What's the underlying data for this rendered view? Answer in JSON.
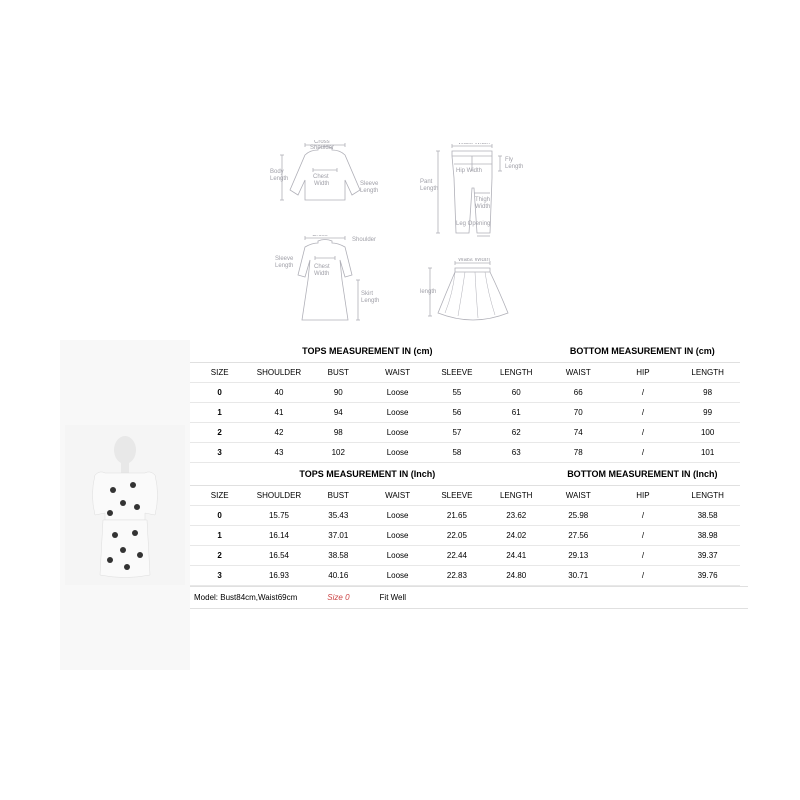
{
  "diagrams": {
    "top": {
      "cross_shoulder": "Cross\nShoulder",
      "body_length": "Body\nLength",
      "chest_width": "Chest\nWidth",
      "sleeve_length": "Sleeve\nLength"
    },
    "pants": {
      "waist_width": "Waist Width",
      "hip_width": "Hip Width",
      "pant_length": "Pant\nLength",
      "thigh_width": "Thigh\nWidth",
      "leg_opening": "Leg Opening",
      "fly_length": "Fly\nLength"
    },
    "dress": {
      "cross_shoulder": "Cross\nShoulder",
      "sleeve_length": "Sleeve\nLength",
      "chest_width": "Chest\nWidth",
      "skirt_length": "Skirt\nLength"
    },
    "skirt": {
      "waist_width": "Waist Width",
      "length": "length"
    }
  },
  "headers": {
    "tops_cm": "TOPS MEASUREMENT IN (cm)",
    "bottom_cm": "BOTTOM MEASUREMENT IN (cm)",
    "tops_inch": "TOPS MEASUREMENT IN (Inch)",
    "bottom_inch": "BOTTOM MEASUREMENT IN (Inch)"
  },
  "columns": {
    "size": "SIZE",
    "shoulder": "SHOULDER",
    "bust": "BUST",
    "waist": "WAIST",
    "sleeve": "SLEEVE",
    "length": "LENGTH",
    "hip": "HIP"
  },
  "cm_data": [
    {
      "size": "0",
      "shoulder": "40",
      "bust": "90",
      "waist": "Loose",
      "sleeve": "55",
      "length": "60",
      "b_waist": "66",
      "b_hip": "/",
      "b_length": "98"
    },
    {
      "size": "1",
      "shoulder": "41",
      "bust": "94",
      "waist": "Loose",
      "sleeve": "56",
      "length": "61",
      "b_waist": "70",
      "b_hip": "/",
      "b_length": "99"
    },
    {
      "size": "2",
      "shoulder": "42",
      "bust": "98",
      "waist": "Loose",
      "sleeve": "57",
      "length": "62",
      "b_waist": "74",
      "b_hip": "/",
      "b_length": "100"
    },
    {
      "size": "3",
      "shoulder": "43",
      "bust": "102",
      "waist": "Loose",
      "sleeve": "58",
      "length": "63",
      "b_waist": "78",
      "b_hip": "/",
      "b_length": "101"
    }
  ],
  "inch_data": [
    {
      "size": "0",
      "shoulder": "15.75",
      "bust": "35.43",
      "waist": "Loose",
      "sleeve": "21.65",
      "length": "23.62",
      "b_waist": "25.98",
      "b_hip": "/",
      "b_length": "38.58"
    },
    {
      "size": "1",
      "shoulder": "16.14",
      "bust": "37.01",
      "waist": "Loose",
      "sleeve": "22.05",
      "length": "24.02",
      "b_waist": "27.56",
      "b_hip": "/",
      "b_length": "38.98"
    },
    {
      "size": "2",
      "shoulder": "16.54",
      "bust": "38.58",
      "waist": "Loose",
      "sleeve": "22.44",
      "length": "24.41",
      "b_waist": "29.13",
      "b_hip": "/",
      "b_length": "39.37"
    },
    {
      "size": "3",
      "shoulder": "16.93",
      "bust": "40.16",
      "waist": "Loose",
      "sleeve": "22.83",
      "length": "24.80",
      "b_waist": "30.71",
      "b_hip": "/",
      "b_length": "39.76"
    }
  ],
  "footer": {
    "model_info": "Model: Bust84cm,Waist69cm",
    "size_label": "Size 0",
    "fit_text": "Fit Well"
  },
  "colors": {
    "border": "#e0e0e0",
    "text": "#333333",
    "highlight": "#cc4444",
    "diagram_line": "#b0b0b8"
  }
}
